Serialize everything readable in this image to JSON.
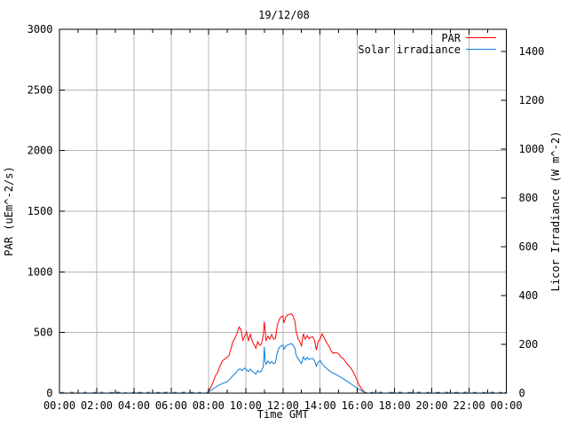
{
  "chart_data": {
    "type": "line",
    "title": "19/12/08",
    "xlabel": "Time GMT",
    "ylabel_left": "PAR (uEm^-2/s)",
    "ylabel_right": "Licor Irradiance (W m^-2)",
    "x_range_hours": [
      0,
      24
    ],
    "x_tick_step_hours": 2,
    "x_minor_tick_step_hours": 1,
    "x_tick_labels": [
      "00:00",
      "02:00",
      "04:00",
      "06:00",
      "08:00",
      "10:00",
      "12:00",
      "14:00",
      "16:00",
      "18:00",
      "20:00",
      "22:00",
      "00:00"
    ],
    "y_left": {
      "min": 0,
      "max": 3000,
      "tick_step": 500,
      "tick_labels": [
        "0",
        "500",
        "1000",
        "1500",
        "2000",
        "2500",
        "3000"
      ]
    },
    "y_right": {
      "min": 0,
      "max": 1490,
      "tick_step": 200,
      "label_max": 1400,
      "tick_labels": [
        "0",
        "200",
        "400",
        "600",
        "800",
        "1000",
        "1200",
        "1400"
      ]
    },
    "grid": true,
    "legend": {
      "position": "top-right",
      "entries": [
        {
          "label": "PAR",
          "color": "#ff0000"
        },
        {
          "label": "Solar irradiance",
          "color": "#0c7bd8"
        }
      ]
    },
    "colors": {
      "par": "#ff0000",
      "solar": "#0c7bd8",
      "grid": "#b4b4b4",
      "axis": "#000000",
      "background": "#ffffff"
    },
    "series": [
      {
        "name": "PAR",
        "axis": "left",
        "color": "#ff0000",
        "points": [
          [
            7.92,
            0
          ],
          [
            8.0,
            15
          ],
          [
            8.1,
            40
          ],
          [
            8.25,
            90
          ],
          [
            8.4,
            150
          ],
          [
            8.5,
            170
          ],
          [
            8.6,
            215
          ],
          [
            8.75,
            265
          ],
          [
            8.9,
            285
          ],
          [
            9.0,
            295
          ],
          [
            9.1,
            310
          ],
          [
            9.2,
            360
          ],
          [
            9.3,
            420
          ],
          [
            9.45,
            460
          ],
          [
            9.55,
            500
          ],
          [
            9.65,
            545
          ],
          [
            9.75,
            525
          ],
          [
            9.85,
            435
          ],
          [
            9.95,
            470
          ],
          [
            10.05,
            505
          ],
          [
            10.15,
            430
          ],
          [
            10.25,
            485
          ],
          [
            10.35,
            430
          ],
          [
            10.45,
            400
          ],
          [
            10.55,
            370
          ],
          [
            10.65,
            425
          ],
          [
            10.75,
            395
          ],
          [
            10.85,
            405
          ],
          [
            10.95,
            480
          ],
          [
            11.0,
            590
          ],
          [
            11.05,
            510
          ],
          [
            11.1,
            435
          ],
          [
            11.2,
            470
          ],
          [
            11.3,
            445
          ],
          [
            11.4,
            485
          ],
          [
            11.5,
            445
          ],
          [
            11.6,
            450
          ],
          [
            11.7,
            560
          ],
          [
            11.8,
            605
          ],
          [
            11.9,
            630
          ],
          [
            12.0,
            635
          ],
          [
            12.05,
            580
          ],
          [
            12.15,
            625
          ],
          [
            12.25,
            645
          ],
          [
            12.35,
            650
          ],
          [
            12.45,
            655
          ],
          [
            12.55,
            635
          ],
          [
            12.65,
            590
          ],
          [
            12.7,
            520
          ],
          [
            12.8,
            455
          ],
          [
            12.9,
            425
          ],
          [
            13.0,
            390
          ],
          [
            13.1,
            490
          ],
          [
            13.2,
            445
          ],
          [
            13.3,
            475
          ],
          [
            13.4,
            450
          ],
          [
            13.5,
            460
          ],
          [
            13.6,
            465
          ],
          [
            13.7,
            435
          ],
          [
            13.8,
            355
          ],
          [
            13.9,
            430
          ],
          [
            14.0,
            445
          ],
          [
            14.1,
            490
          ],
          [
            14.2,
            460
          ],
          [
            14.3,
            430
          ],
          [
            14.4,
            405
          ],
          [
            14.5,
            380
          ],
          [
            14.6,
            345
          ],
          [
            14.7,
            330
          ],
          [
            14.85,
            335
          ],
          [
            15.0,
            325
          ],
          [
            15.1,
            300
          ],
          [
            15.25,
            285
          ],
          [
            15.4,
            250
          ],
          [
            15.55,
            225
          ],
          [
            15.7,
            195
          ],
          [
            15.85,
            155
          ],
          [
            16.0,
            100
          ],
          [
            16.1,
            65
          ],
          [
            16.25,
            30
          ],
          [
            16.4,
            8
          ],
          [
            16.5,
            0
          ]
        ]
      },
      {
        "name": "Solar irradiance",
        "axis": "right",
        "color": "#0c7bd8",
        "points": [
          [
            0.05,
            3
          ],
          [
            0.25,
            3
          ],
          null,
          [
            0.6,
            4
          ],
          [
            0.75,
            3
          ],
          null,
          [
            1.3,
            3
          ],
          [
            1.45,
            4
          ],
          null,
          [
            1.8,
            3
          ],
          [
            1.95,
            3
          ],
          null,
          [
            2.2,
            4
          ],
          [
            2.35,
            3
          ],
          null,
          [
            2.7,
            3
          ],
          [
            2.9,
            3
          ],
          null,
          [
            3.05,
            4
          ],
          [
            3.25,
            3
          ],
          null,
          [
            3.5,
            3
          ],
          [
            3.6,
            3
          ],
          null,
          [
            3.9,
            3
          ],
          [
            4.05,
            4
          ],
          null,
          [
            4.2,
            3
          ],
          [
            4.45,
            3
          ],
          null,
          [
            4.7,
            3
          ],
          [
            4.85,
            4
          ],
          null,
          [
            5.2,
            3
          ],
          [
            5.4,
            3
          ],
          null,
          [
            5.6,
            3
          ],
          [
            5.8,
            4
          ],
          null,
          [
            6.1,
            3
          ],
          [
            6.3,
            3
          ],
          null,
          [
            6.55,
            3
          ],
          [
            6.75,
            4
          ],
          null,
          [
            7.0,
            3
          ],
          [
            7.2,
            3
          ],
          null,
          [
            7.45,
            3
          ],
          [
            7.6,
            3
          ],
          null,
          [
            7.9,
            2
          ],
          [
            8.0,
            6
          ],
          [
            8.15,
            12
          ],
          [
            8.3,
            20
          ],
          [
            8.5,
            30
          ],
          [
            8.7,
            38
          ],
          [
            8.9,
            44
          ],
          [
            9.0,
            46
          ],
          [
            9.15,
            58
          ],
          [
            9.3,
            70
          ],
          [
            9.45,
            82
          ],
          [
            9.6,
            95
          ],
          [
            9.7,
            100
          ],
          [
            9.8,
            92
          ],
          [
            9.95,
            103
          ],
          [
            10.05,
            96
          ],
          [
            10.15,
            88
          ],
          [
            10.25,
            99
          ],
          [
            10.35,
            90
          ],
          [
            10.45,
            84
          ],
          [
            10.55,
            78
          ],
          [
            10.65,
            92
          ],
          [
            10.75,
            86
          ],
          [
            10.85,
            90
          ],
          [
            10.95,
            110
          ],
          [
            11.0,
            190
          ],
          [
            11.05,
            130
          ],
          [
            11.1,
            118
          ],
          [
            11.2,
            132
          ],
          [
            11.3,
            122
          ],
          [
            11.4,
            130
          ],
          [
            11.5,
            120
          ],
          [
            11.6,
            126
          ],
          [
            11.7,
            168
          ],
          [
            11.8,
            186
          ],
          [
            11.9,
            194
          ],
          [
            12.0,
            197
          ],
          [
            12.05,
            180
          ],
          [
            12.15,
            192
          ],
          [
            12.25,
            197
          ],
          [
            12.35,
            200
          ],
          [
            12.45,
            203
          ],
          [
            12.55,
            196
          ],
          [
            12.65,
            184
          ],
          [
            12.7,
            158
          ],
          [
            12.8,
            142
          ],
          [
            12.9,
            132
          ],
          [
            13.0,
            121
          ],
          [
            13.1,
            149
          ],
          [
            13.2,
            136
          ],
          [
            13.3,
            146
          ],
          [
            13.4,
            138
          ],
          [
            13.5,
            141
          ],
          [
            13.6,
            143
          ],
          [
            13.7,
            133
          ],
          [
            13.8,
            110
          ],
          [
            13.9,
            127
          ],
          [
            14.0,
            134
          ],
          [
            14.1,
            120
          ],
          [
            14.2,
            112
          ],
          [
            14.3,
            105
          ],
          [
            14.4,
            98
          ],
          [
            14.5,
            92
          ],
          [
            14.6,
            86
          ],
          [
            14.75,
            80
          ],
          [
            14.9,
            75
          ],
          [
            15.0,
            70
          ],
          [
            15.2,
            61
          ],
          [
            15.4,
            51
          ],
          [
            15.6,
            41
          ],
          [
            15.8,
            30
          ],
          [
            16.0,
            20
          ],
          [
            16.2,
            11
          ],
          [
            16.35,
            5
          ],
          [
            16.5,
            2
          ],
          null,
          [
            16.7,
            3
          ],
          [
            16.9,
            3
          ],
          null,
          [
            17.15,
            4
          ],
          [
            17.35,
            3
          ],
          null,
          [
            17.7,
            3
          ],
          [
            17.95,
            3
          ],
          null,
          [
            18.2,
            4
          ],
          [
            18.4,
            3
          ],
          null,
          [
            18.7,
            3
          ],
          [
            18.95,
            3
          ],
          null,
          [
            19.2,
            3
          ],
          [
            19.4,
            4
          ],
          null,
          [
            19.7,
            3
          ],
          [
            19.9,
            3
          ],
          null,
          [
            20.2,
            3
          ],
          [
            20.45,
            3
          ],
          null,
          [
            20.7,
            4
          ],
          [
            20.9,
            3
          ],
          null,
          [
            21.2,
            3
          ],
          [
            21.45,
            3
          ],
          null,
          [
            21.7,
            3
          ],
          [
            21.9,
            4
          ],
          null,
          [
            22.2,
            3
          ],
          [
            22.4,
            3
          ],
          null,
          [
            22.7,
            3
          ],
          [
            22.9,
            3
          ],
          null,
          [
            23.15,
            4
          ],
          [
            23.35,
            3
          ],
          null,
          [
            23.6,
            3
          ],
          [
            23.8,
            3
          ],
          null,
          [
            23.9,
            3
          ],
          [
            24.0,
            3
          ]
        ]
      }
    ]
  }
}
